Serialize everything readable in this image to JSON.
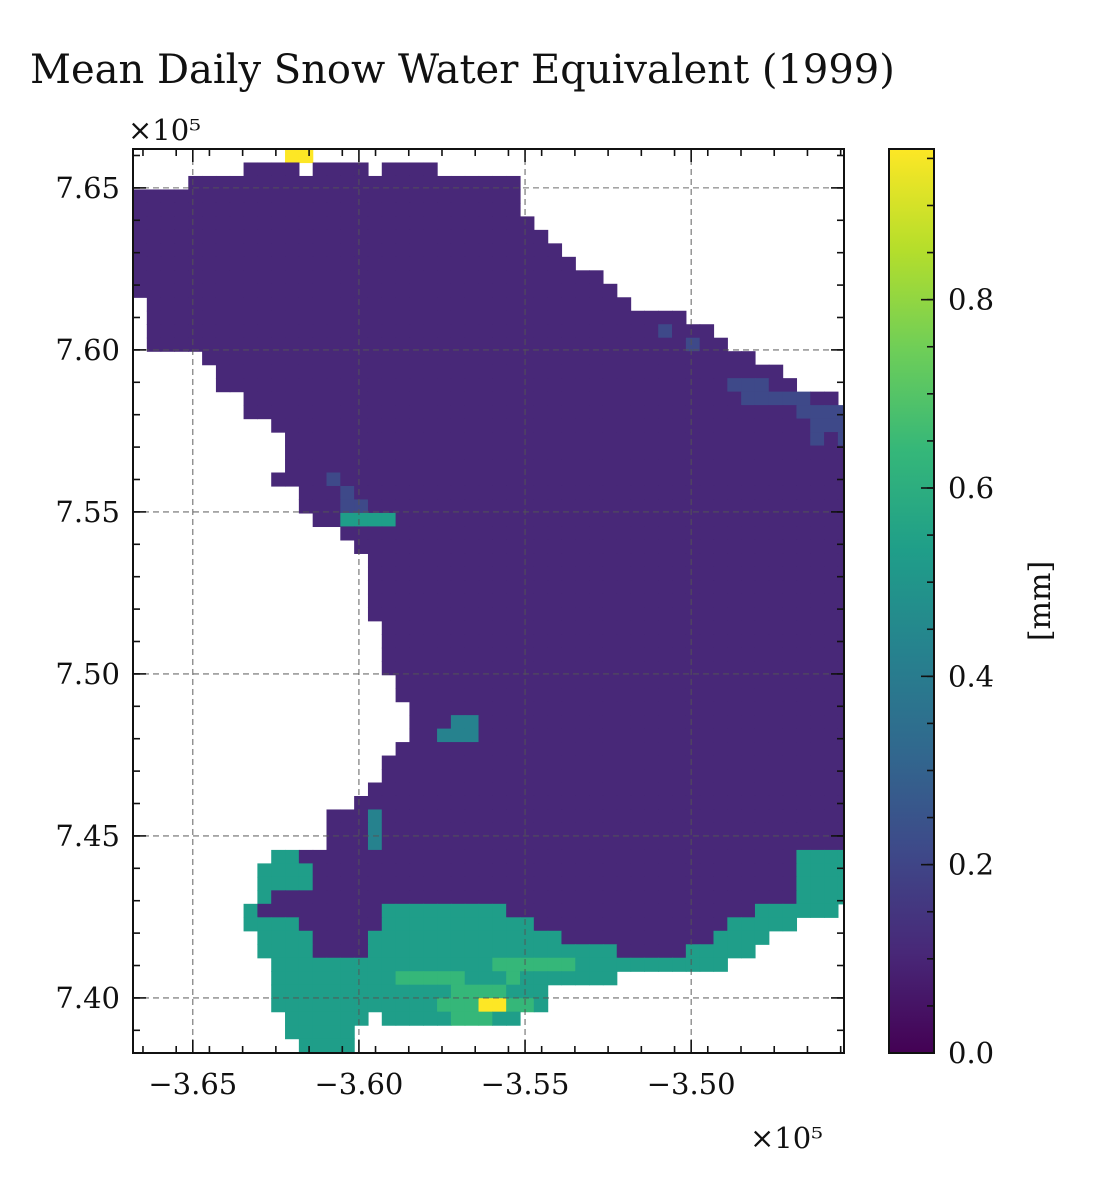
{
  "chart_data": {
    "type": "heatmap",
    "title": "Mean Daily Snow Water Equivalent (1999)",
    "x_multiplier": "×10⁵",
    "y_multiplier": "×10⁵",
    "x_ticks": [
      -3.65,
      -3.6,
      -3.55,
      -3.5
    ],
    "x_tick_labels": [
      "−3.65",
      "−3.60",
      "−3.55",
      "−3.50"
    ],
    "y_ticks": [
      7.4,
      7.45,
      7.5,
      7.55,
      7.6,
      7.65
    ],
    "y_tick_labels": [
      "7.40",
      "7.45",
      "7.50",
      "7.55",
      "7.60",
      "7.65"
    ],
    "xlim": [
      -3.668,
      -3.454
    ],
    "ylim": [
      7.383,
      7.662
    ],
    "grid": true,
    "colorbar": {
      "label": "[mm]",
      "range": [
        0.0,
        0.96
      ],
      "ticks": [
        0.0,
        0.2,
        0.4,
        0.6,
        0.8
      ],
      "tick_labels": [
        "0.0",
        "0.2",
        "0.4",
        "0.6",
        "0.8"
      ],
      "colormap": "viridis",
      "colors": [
        "#440154",
        "#482878",
        "#3e4989",
        "#31688e",
        "#26828e",
        "#1f9e89",
        "#35b779",
        "#6ece58",
        "#b5de2b",
        "#fde725"
      ]
    },
    "grid_spec": {
      "x0": -3.668,
      "dx": 0.00416,
      "y_top": 7.662,
      "dy": 0.00416,
      "encoding": "each character is one cell; '.' = no data; '0'..'9' = SWE in tenths of 0.96 mm (roughly 0.0–0.96 mm)"
    },
    "cells": [
      "...........99........................................................",
      "........1111.1111.1111...............................................",
      "....111111111111111111111111.........................................",
      "1111111111111111111111111111........................................",
      "1111111111111111111111111111.........................................",
      "11111111111111111111111111111........................................",
      "111111111111111111111111111111.......................................",
      "1111111111111111111111111111111......................................",
      "11111111111111111111111111111111.....................................",
      "1111111111111111111111111111111111...................................",
      "11111111111111111111111111111111111..................................",
      ".11111111111111111111111111111111111.................................",
      ".111111111111111111111111111111111111111.............................",
      ".11111111111111111111111111111111111112111...........................",
      ".111111111111111111111111111111111111111211..........................",
      ".....1111111111111111111111111111111111111111........................",
      "......11111111111111111111111111111111111111111......................",
      "......111111111111111111111111111111111111122211.....................",
      "........1111111111111111111111111111111111112222211..................",
      "........111111111111111111111111111111111111111122222................",
      "..........111111111111111111111111111111111111111222222..............",
      "...........11111111111111111111111111111111111111212222..............",
      "...........111111111111111111111111111111111111111112221.............",
      "...........11111111111111111111111111111111111111111155522...........",
      "..........111121111111111111111111111111111111111111111111122........",
      "............1112111111111111111111111111111111111111111112222........",
      "............1112211111111111111111111111111111111111111111111222.....",
      ".............115555111111111111111111111111111111111111111122222.....",
      "...............11111111111111111111111111111111111111111111111122....",
      "................11111111111111111111111111111111111111111111111122...",
      ".................111111111111111111111111111111111111111111111111155.",
      ".................111111111111111111111111111111111111111111111111155.",
      ".................111111111111111111111111111111111111111111111111111.",
      ".................111111111111111111111111111111111111111111111111111.",
      ".................111111111111111111111111111111111111111111111111111.",
      "..................1111111111111111111111111111111111111111111111111112",
      "..................1111111111111111111111111111111111111111111111111122",
      "..................11111111111111111111111111111111111111111122255555556",
      "..................1111111111111111111111111111111111111111112555555566666",
      "...................1111111111111111111111111111111111111111255555555555656",
      "...................11111111111111111111111111111111111111112555565555555555",
      "....................111111111111111111111111111111111111111111255556655555555",
      "....................11144111111111111111111111111111111111111112556666666655",
      "....................1144411111111111111111111111111111111111111225666666662",
      "...................11111111111111111111111111111111111111111115566666666",
      "..................111111111111111111111111111111111111111116666666666",
      "..................1111111111111111111111111111111111111111155556666666",
      ".................11111111111111111111111111111111111111111155555566666",
      "................1111111111111111111111111111111111111111111666665566",
      "..............11141111111111111111111111111111111111111111155555556",
      "..............111411111111111111111111111111111111111155555555555",
      "..............111411111111111111111111111111111111115555555555511",
      "..........5511111111111111111111111111111111111155555555555555",
      ".........55551111111111111111111111111111111111155555555......",
      ".........5555111111111111111111111111111111111115555555.......",
      ".........51111111111111111111111111111111111111155555555......",
      "........5111111111555555555111111111111111111555555...........",
      "........5555111111555555555551111111111111155555..............",
      ".........5555111155555555555555111111111115555................",
      ".........555511115555555555555555551111155555.................",
      "..........555555555555555566666655555555555...................",
      "..........5555555556666655565555555...........................",
      "..........55555555555556666555................................",
      "..........55555555555566699665................................",
      "...........555555.5555566655..................................",
      "...........55555..............................................",
      "............5555..............................................",
      "............555...............................................",
      "............6................................................."
    ]
  }
}
